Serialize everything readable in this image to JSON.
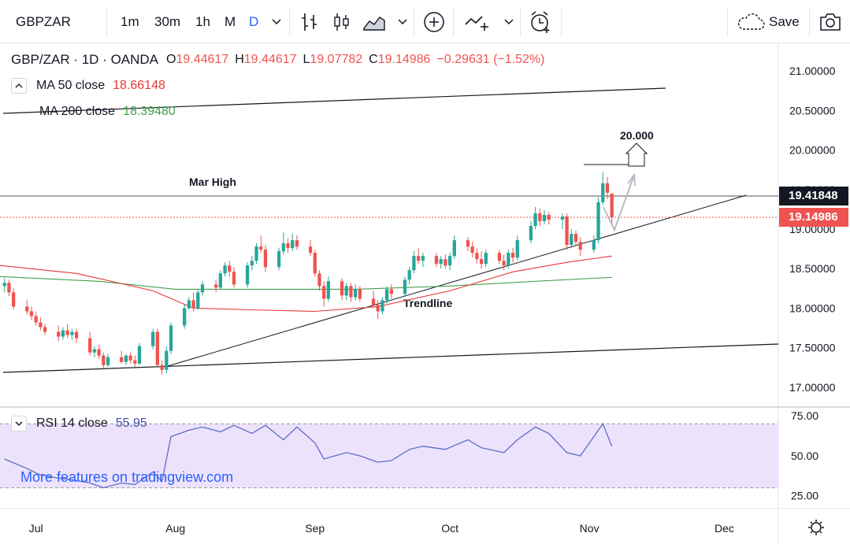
{
  "toolbar": {
    "symbol": "GBPZAR",
    "intervals": [
      "1m",
      "30m",
      "1h",
      "M",
      "D"
    ],
    "active_interval": "D",
    "save_label": "Save",
    "icons": [
      "chevron-down-icon",
      "bar-chart-icon",
      "candle-chart-icon",
      "area-chart-icon",
      "add-indicator-icon",
      "compare-icon",
      "alert-icon",
      "cloud-save-icon",
      "camera-icon"
    ]
  },
  "legend": {
    "title": "GBP/ZAR · 1D · OANDA",
    "open_label": "O",
    "open": "19.44617",
    "high_label": "H",
    "high": "19.44617",
    "low_label": "L",
    "low": "19.07782",
    "close_label": "C",
    "close": "19.14986",
    "change": "−0.29631 (−1.52%)",
    "ma50_label": "MA 50 close",
    "ma50_value": "18.66148",
    "ma200_label": "MA 200 close",
    "ma200_value": "18.39480"
  },
  "rsi": {
    "label": "RSI 14 close",
    "value": "55.95"
  },
  "watermark": "More features on tradingview.com",
  "colors": {
    "up": "#26a69a",
    "down": "#ef5350",
    "ma50": "#e53935",
    "ma200": "#43a047",
    "rsi": "#5b6ec7",
    "rsi_band": "#ede2fb",
    "accent": "#2962ff"
  },
  "chart_data": [
    {
      "type": "candlestick",
      "title": "GBP/ZAR · 1D · OANDA",
      "ylim": [
        16.75,
        21.35
      ],
      "y_ticks": [
        "21.00000",
        "20.50000",
        "20.00000",
        "19.50000",
        "19.00000",
        "18.50000",
        "18.00000",
        "17.50000",
        "17.00000"
      ],
      "y_tick_values": [
        21.0,
        20.5,
        20.0,
        19.5,
        19.0,
        18.5,
        18.0,
        17.5,
        17.0
      ],
      "x_labels": [
        "Jul",
        "Aug",
        "Sep",
        "Oct",
        "Nov",
        "Dec"
      ],
      "x_label_dates": [
        "2020-07-01",
        "2020-08-01",
        "2020-09-01",
        "2020-10-01",
        "2020-11-01",
        "2020-12-01"
      ],
      "x_range": [
        "2020-06-23",
        "2020-12-13"
      ],
      "candles": [
        {
          "d": "2020-06-24",
          "o": 18.28,
          "h": 18.38,
          "l": 18.2,
          "c": 18.32
        },
        {
          "d": "2020-06-25",
          "o": 18.32,
          "h": 18.36,
          "l": 18.15,
          "c": 18.2
        },
        {
          "d": "2020-06-26",
          "o": 18.2,
          "h": 18.25,
          "l": 17.98,
          "c": 18.02
        },
        {
          "d": "2020-06-29",
          "o": 18.02,
          "h": 18.1,
          "l": 17.92,
          "c": 17.96
        },
        {
          "d": "2020-06-30",
          "o": 17.96,
          "h": 18.02,
          "l": 17.85,
          "c": 17.9
        },
        {
          "d": "2020-07-01",
          "o": 17.9,
          "h": 17.95,
          "l": 17.78,
          "c": 17.82
        },
        {
          "d": "2020-07-02",
          "o": 17.82,
          "h": 17.88,
          "l": 17.72,
          "c": 17.76
        },
        {
          "d": "2020-07-03",
          "o": 17.76,
          "h": 17.8,
          "l": 17.66,
          "c": 17.7
        },
        {
          "d": "2020-07-06",
          "o": 17.7,
          "h": 17.78,
          "l": 17.58,
          "c": 17.64
        },
        {
          "d": "2020-07-07",
          "o": 17.64,
          "h": 17.76,
          "l": 17.6,
          "c": 17.72
        },
        {
          "d": "2020-07-08",
          "o": 17.72,
          "h": 17.8,
          "l": 17.62,
          "c": 17.66
        },
        {
          "d": "2020-07-09",
          "o": 17.66,
          "h": 17.74,
          "l": 17.6,
          "c": 17.7
        },
        {
          "d": "2020-07-10",
          "o": 17.7,
          "h": 17.74,
          "l": 17.56,
          "c": 17.62
        },
        {
          "d": "2020-07-13",
          "o": 17.62,
          "h": 17.7,
          "l": 17.4,
          "c": 17.44
        },
        {
          "d": "2020-07-14",
          "o": 17.44,
          "h": 17.52,
          "l": 17.38,
          "c": 17.48
        },
        {
          "d": "2020-07-15",
          "o": 17.48,
          "h": 17.54,
          "l": 17.36,
          "c": 17.4
        },
        {
          "d": "2020-07-16",
          "o": 17.4,
          "h": 17.44,
          "l": 17.22,
          "c": 17.28
        },
        {
          "d": "2020-07-17",
          "o": 17.28,
          "h": 17.42,
          "l": 17.26,
          "c": 17.38
        },
        {
          "d": "2020-07-20",
          "o": 17.38,
          "h": 17.46,
          "l": 17.3,
          "c": 17.32
        },
        {
          "d": "2020-07-21",
          "o": 17.32,
          "h": 17.42,
          "l": 17.28,
          "c": 17.4
        },
        {
          "d": "2020-07-22",
          "o": 17.4,
          "h": 17.44,
          "l": 17.3,
          "c": 17.34
        },
        {
          "d": "2020-07-23",
          "o": 17.34,
          "h": 17.4,
          "l": 17.26,
          "c": 17.3
        },
        {
          "d": "2020-07-24",
          "o": 17.3,
          "h": 17.56,
          "l": 17.28,
          "c": 17.52
        },
        {
          "d": "2020-07-27",
          "o": 17.52,
          "h": 17.74,
          "l": 17.48,
          "c": 17.7
        },
        {
          "d": "2020-07-28",
          "o": 17.7,
          "h": 17.74,
          "l": 17.24,
          "c": 17.28
        },
        {
          "d": "2020-07-29",
          "o": 17.28,
          "h": 17.34,
          "l": 17.16,
          "c": 17.22
        },
        {
          "d": "2020-07-30",
          "o": 17.22,
          "h": 17.52,
          "l": 17.18,
          "c": 17.46
        },
        {
          "d": "2020-07-31",
          "o": 17.46,
          "h": 17.82,
          "l": 17.42,
          "c": 17.78
        },
        {
          "d": "2020-08-03",
          "o": 17.78,
          "h": 18.05,
          "l": 17.74,
          "c": 18.0
        },
        {
          "d": "2020-08-04",
          "o": 18.0,
          "h": 18.14,
          "l": 17.98,
          "c": 18.1
        },
        {
          "d": "2020-08-05",
          "o": 18.1,
          "h": 18.2,
          "l": 17.96,
          "c": 18.0
        },
        {
          "d": "2020-08-06",
          "o": 18.0,
          "h": 18.24,
          "l": 17.98,
          "c": 18.2
        },
        {
          "d": "2020-08-07",
          "o": 18.2,
          "h": 18.34,
          "l": 18.16,
          "c": 18.3
        },
        {
          "d": "2020-08-10",
          "o": 18.3,
          "h": 18.36,
          "l": 18.2,
          "c": 18.26
        },
        {
          "d": "2020-08-11",
          "o": 18.26,
          "h": 18.48,
          "l": 18.24,
          "c": 18.44
        },
        {
          "d": "2020-08-12",
          "o": 18.44,
          "h": 18.58,
          "l": 18.4,
          "c": 18.54
        },
        {
          "d": "2020-08-13",
          "o": 18.54,
          "h": 18.6,
          "l": 18.4,
          "c": 18.46
        },
        {
          "d": "2020-08-14",
          "o": 18.46,
          "h": 18.52,
          "l": 18.26,
          "c": 18.3
        },
        {
          "d": "2020-08-17",
          "o": 18.3,
          "h": 18.58,
          "l": 18.26,
          "c": 18.54
        },
        {
          "d": "2020-08-18",
          "o": 18.54,
          "h": 18.66,
          "l": 18.48,
          "c": 18.6
        },
        {
          "d": "2020-08-19",
          "o": 18.6,
          "h": 18.82,
          "l": 18.56,
          "c": 18.78
        },
        {
          "d": "2020-08-20",
          "o": 18.78,
          "h": 18.92,
          "l": 18.7,
          "c": 18.74
        },
        {
          "d": "2020-08-21",
          "o": 18.74,
          "h": 18.8,
          "l": 18.46,
          "c": 18.52
        },
        {
          "d": "2020-08-24",
          "o": 18.52,
          "h": 18.76,
          "l": 18.48,
          "c": 18.72
        },
        {
          "d": "2020-08-25",
          "o": 18.72,
          "h": 18.96,
          "l": 18.68,
          "c": 18.82
        },
        {
          "d": "2020-08-26",
          "o": 18.82,
          "h": 18.88,
          "l": 18.7,
          "c": 18.76
        },
        {
          "d": "2020-08-27",
          "o": 18.76,
          "h": 18.94,
          "l": 18.72,
          "c": 18.86
        },
        {
          "d": "2020-08-28",
          "o": 18.86,
          "h": 18.92,
          "l": 18.74,
          "c": 18.78
        },
        {
          "d": "2020-08-31",
          "o": 18.78,
          "h": 18.86,
          "l": 18.66,
          "c": 18.7
        },
        {
          "d": "2020-09-01",
          "o": 18.7,
          "h": 18.74,
          "l": 18.4,
          "c": 18.44
        },
        {
          "d": "2020-09-02",
          "o": 18.44,
          "h": 18.48,
          "l": 18.22,
          "c": 18.28
        },
        {
          "d": "2020-09-03",
          "o": 18.28,
          "h": 18.34,
          "l": 18.02,
          "c": 18.12
        },
        {
          "d": "2020-09-04",
          "o": 18.12,
          "h": 18.4,
          "l": 18.08,
          "c": 18.34
        },
        {
          "d": "2020-09-07",
          "o": 18.34,
          "h": 18.38,
          "l": 18.1,
          "c": 18.16
        },
        {
          "d": "2020-09-08",
          "o": 18.16,
          "h": 18.32,
          "l": 18.1,
          "c": 18.28
        },
        {
          "d": "2020-09-09",
          "o": 18.28,
          "h": 18.32,
          "l": 18.08,
          "c": 18.14
        },
        {
          "d": "2020-09-10",
          "o": 18.14,
          "h": 18.3,
          "l": 18.1,
          "c": 18.24
        },
        {
          "d": "2020-09-11",
          "o": 18.24,
          "h": 18.28,
          "l": 18.08,
          "c": 18.12
        },
        {
          "d": "2020-09-14",
          "o": 18.12,
          "h": 18.22,
          "l": 18.0,
          "c": 18.04
        },
        {
          "d": "2020-09-15",
          "o": 18.04,
          "h": 18.1,
          "l": 17.86,
          "c": 17.96
        },
        {
          "d": "2020-09-16",
          "o": 17.96,
          "h": 18.14,
          "l": 17.92,
          "c": 18.1
        },
        {
          "d": "2020-09-17",
          "o": 18.1,
          "h": 18.28,
          "l": 18.06,
          "c": 18.24
        },
        {
          "d": "2020-09-18",
          "o": 18.24,
          "h": 18.3,
          "l": 18.12,
          "c": 18.18
        },
        {
          "d": "2020-09-21",
          "o": 18.18,
          "h": 18.4,
          "l": 18.14,
          "c": 18.36
        },
        {
          "d": "2020-09-22",
          "o": 18.36,
          "h": 18.52,
          "l": 18.3,
          "c": 18.48
        },
        {
          "d": "2020-09-23",
          "o": 18.48,
          "h": 18.72,
          "l": 18.44,
          "c": 18.66
        },
        {
          "d": "2020-09-24",
          "o": 18.66,
          "h": 18.76,
          "l": 18.56,
          "c": 18.6
        },
        {
          "d": "2020-09-25",
          "o": 18.6,
          "h": 18.7,
          "l": 18.52,
          "c": 18.66
        },
        {
          "d": "2020-09-28",
          "o": 18.66,
          "h": 18.7,
          "l": 18.52,
          "c": 18.56
        },
        {
          "d": "2020-09-29",
          "o": 18.56,
          "h": 18.66,
          "l": 18.5,
          "c": 18.62
        },
        {
          "d": "2020-09-30",
          "o": 18.62,
          "h": 18.68,
          "l": 18.5,
          "c": 18.54
        },
        {
          "d": "2020-10-01",
          "o": 18.54,
          "h": 18.7,
          "l": 18.48,
          "c": 18.66
        },
        {
          "d": "2020-10-02",
          "o": 18.66,
          "h": 18.92,
          "l": 18.62,
          "c": 18.86
        },
        {
          "d": "2020-10-05",
          "o": 18.86,
          "h": 18.9,
          "l": 18.72,
          "c": 18.78
        },
        {
          "d": "2020-10-06",
          "o": 18.78,
          "h": 18.84,
          "l": 18.64,
          "c": 18.7
        },
        {
          "d": "2020-10-07",
          "o": 18.7,
          "h": 18.76,
          "l": 18.56,
          "c": 18.62
        },
        {
          "d": "2020-10-08",
          "o": 18.62,
          "h": 18.72,
          "l": 18.5,
          "c": 18.56
        },
        {
          "d": "2020-10-09",
          "o": 18.56,
          "h": 18.74,
          "l": 18.52,
          "c": 18.7
        },
        {
          "d": "2020-10-12",
          "o": 18.7,
          "h": 18.74,
          "l": 18.56,
          "c": 18.6
        },
        {
          "d": "2020-10-13",
          "o": 18.6,
          "h": 18.68,
          "l": 18.48,
          "c": 18.54
        },
        {
          "d": "2020-10-14",
          "o": 18.54,
          "h": 18.74,
          "l": 18.5,
          "c": 18.7
        },
        {
          "d": "2020-10-15",
          "o": 18.7,
          "h": 18.76,
          "l": 18.58,
          "c": 18.64
        },
        {
          "d": "2020-10-16",
          "o": 18.64,
          "h": 18.92,
          "l": 18.6,
          "c": 18.86
        },
        {
          "d": "2020-10-19",
          "o": 18.86,
          "h": 19.1,
          "l": 18.82,
          "c": 19.04
        },
        {
          "d": "2020-10-20",
          "o": 19.04,
          "h": 19.28,
          "l": 19.0,
          "c": 19.2
        },
        {
          "d": "2020-10-21",
          "o": 19.2,
          "h": 19.26,
          "l": 19.04,
          "c": 19.1
        },
        {
          "d": "2020-10-22",
          "o": 19.1,
          "h": 19.24,
          "l": 19.06,
          "c": 19.18
        },
        {
          "d": "2020-10-23",
          "o": 19.18,
          "h": 19.22,
          "l": 19.06,
          "c": 19.12
        },
        {
          "d": "2020-10-26",
          "o": 19.12,
          "h": 19.2,
          "l": 19.0,
          "c": 19.16
        },
        {
          "d": "2020-10-27",
          "o": 19.16,
          "h": 19.2,
          "l": 18.74,
          "c": 18.8
        },
        {
          "d": "2020-10-28",
          "o": 18.8,
          "h": 19.0,
          "l": 18.76,
          "c": 18.94
        },
        {
          "d": "2020-10-29",
          "o": 18.94,
          "h": 18.98,
          "l": 18.8,
          "c": 18.84
        },
        {
          "d": "2020-10-30",
          "o": 18.84,
          "h": 18.9,
          "l": 18.66,
          "c": 18.74
        },
        {
          "d": "2020-11-02",
          "o": 18.74,
          "h": 18.92,
          "l": 18.7,
          "c": 18.86
        },
        {
          "d": "2020-11-03",
          "o": 18.86,
          "h": 19.4,
          "l": 18.82,
          "c": 19.34
        },
        {
          "d": "2020-11-04",
          "o": 19.34,
          "h": 19.72,
          "l": 19.3,
          "c": 19.58
        },
        {
          "d": "2020-11-05",
          "o": 19.58,
          "h": 19.66,
          "l": 19.38,
          "c": 19.46
        },
        {
          "d": "2020-11-06",
          "o": 19.45,
          "h": 19.45,
          "l": 19.08,
          "c": 19.15
        }
      ],
      "ma50": [
        {
          "d": "2020-06-23",
          "v": 18.54
        },
        {
          "d": "2020-07-10",
          "v": 18.44
        },
        {
          "d": "2020-07-27",
          "v": 18.22
        },
        {
          "d": "2020-08-05",
          "v": 18.0
        },
        {
          "d": "2020-08-18",
          "v": 17.98
        },
        {
          "d": "2020-09-01",
          "v": 17.96
        },
        {
          "d": "2020-09-15",
          "v": 18.02
        },
        {
          "d": "2020-10-01",
          "v": 18.22
        },
        {
          "d": "2020-10-15",
          "v": 18.46
        },
        {
          "d": "2020-10-27",
          "v": 18.58
        },
        {
          "d": "2020-11-06",
          "v": 18.66
        }
      ],
      "ma200": [
        {
          "d": "2020-06-23",
          "v": 18.4
        },
        {
          "d": "2020-07-15",
          "v": 18.34
        },
        {
          "d": "2020-08-01",
          "v": 18.24
        },
        {
          "d": "2020-08-20",
          "v": 18.24
        },
        {
          "d": "2020-09-10",
          "v": 18.24
        },
        {
          "d": "2020-10-01",
          "v": 18.28
        },
        {
          "d": "2020-10-20",
          "v": 18.34
        },
        {
          "d": "2020-11-06",
          "v": 18.39
        }
      ],
      "mar_high": 19.41848,
      "last_price": 19.14986,
      "annotations": [
        {
          "text": "Mar High"
        },
        {
          "text": "Trendline"
        },
        {
          "text": "20.000"
        }
      ],
      "price_tags": [
        "19.41848",
        "19.14986"
      ]
    },
    {
      "type": "line",
      "title": "RSI 14 close",
      "ylim": [
        17,
        80
      ],
      "y_ticks": [
        "75.00",
        "50.00",
        "25.00"
      ],
      "y_tick_values": [
        75,
        50,
        25
      ],
      "band": [
        30,
        70
      ],
      "series": [
        {
          "name": "RSI 14 close",
          "x": [
            "2020-06-24",
            "2020-06-29",
            "2020-07-02",
            "2020-07-06",
            "2020-07-09",
            "2020-07-13",
            "2020-07-16",
            "2020-07-20",
            "2020-07-23",
            "2020-07-27",
            "2020-07-29",
            "2020-07-31",
            "2020-08-04",
            "2020-08-07",
            "2020-08-11",
            "2020-08-14",
            "2020-08-18",
            "2020-08-21",
            "2020-08-25",
            "2020-08-28",
            "2020-09-01",
            "2020-09-03",
            "2020-09-08",
            "2020-09-11",
            "2020-09-15",
            "2020-09-18",
            "2020-09-22",
            "2020-09-25",
            "2020-09-30",
            "2020-10-05",
            "2020-10-08",
            "2020-10-13",
            "2020-10-16",
            "2020-10-20",
            "2020-10-23",
            "2020-10-27",
            "2020-10-30",
            "2020-11-03",
            "2020-11-04",
            "2020-11-06"
          ],
          "values": [
            48,
            42,
            38,
            36,
            35,
            33,
            30,
            33,
            32,
            40,
            34,
            62,
            66,
            68,
            65,
            69,
            64,
            69,
            60,
            68,
            58,
            48,
            52,
            50,
            46,
            47,
            54,
            56,
            54,
            60,
            55,
            52,
            60,
            68,
            64,
            52,
            50,
            66,
            70,
            56
          ]
        }
      ]
    }
  ]
}
